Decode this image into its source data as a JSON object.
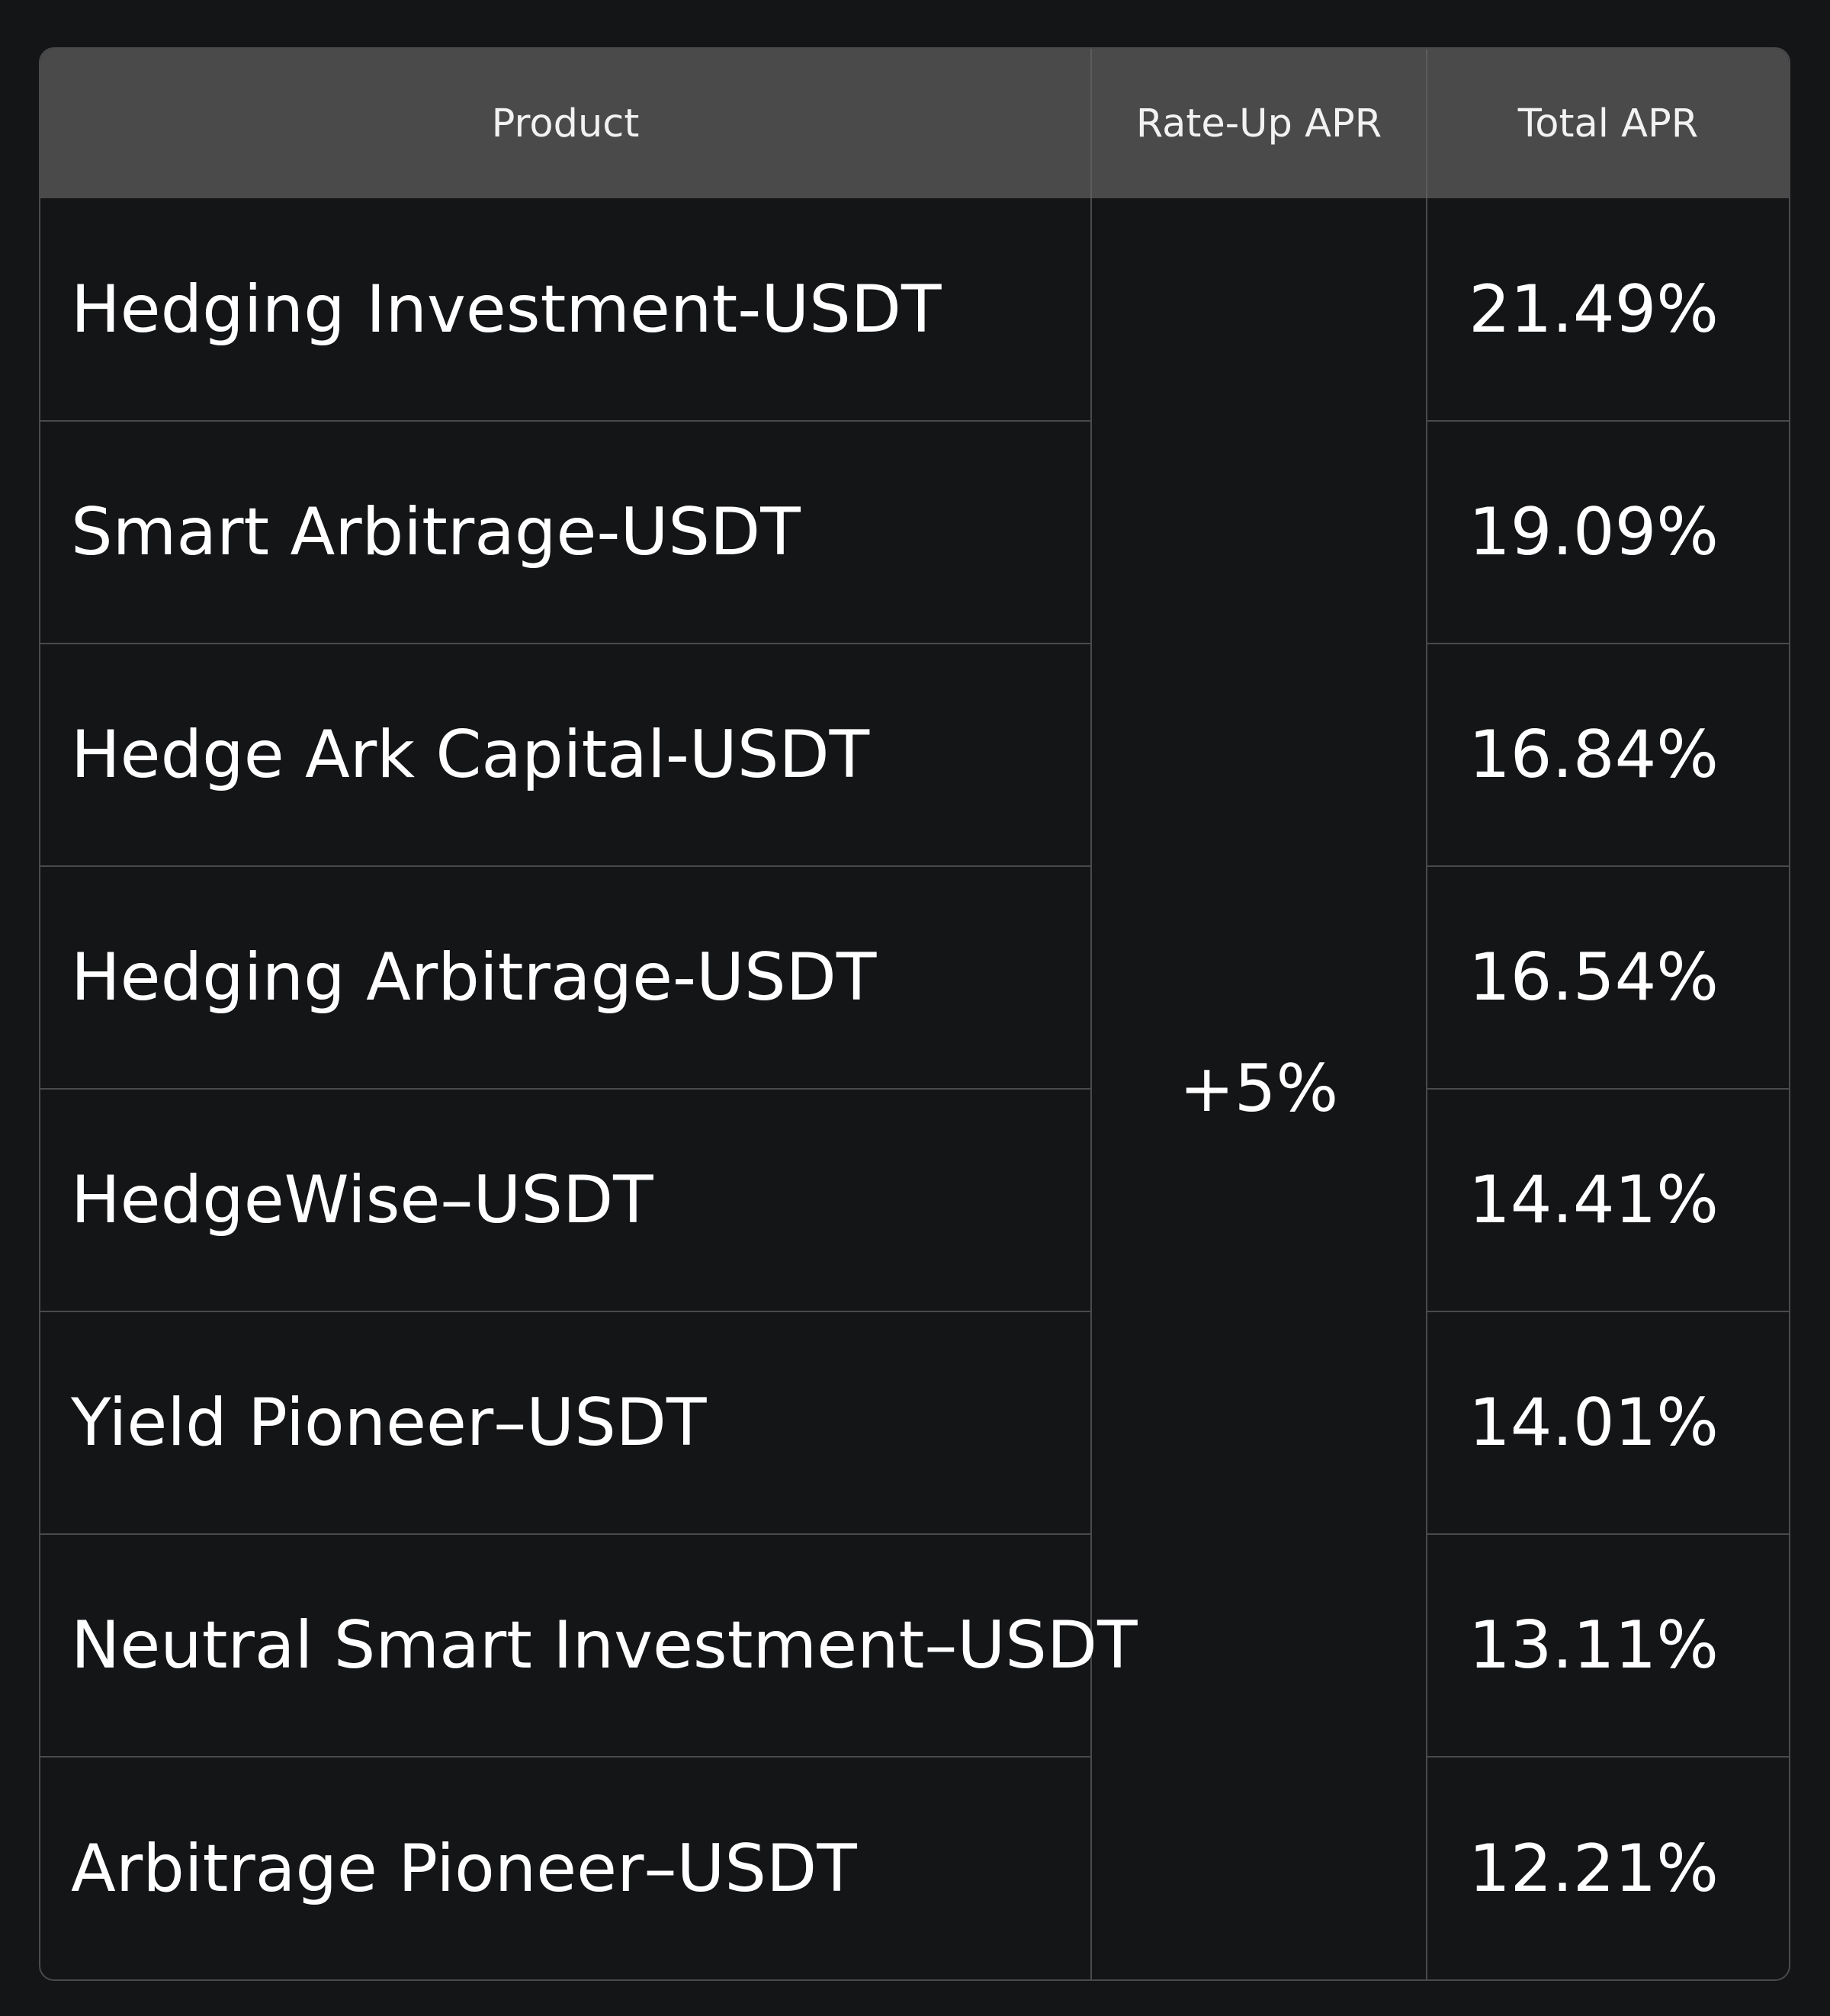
{
  "table": {
    "headers": {
      "product": "Product",
      "rate_up_apr": "Rate-Up APR",
      "total_apr": "Total APR"
    },
    "rate_up_apr_value": "+5%",
    "rows": [
      {
        "product": "Hedging Investment-USDT",
        "total_apr": "21.49%"
      },
      {
        "product": "Smart Arbitrage-USDT",
        "total_apr": "19.09%"
      },
      {
        "product": "Hedge Ark Capital-USDT",
        "total_apr": "16.84%"
      },
      {
        "product": "Hedging Arbitrage-USDT",
        "total_apr": "16.54%"
      },
      {
        "product": "HedgeWise–USDT",
        "total_apr": "14.41%"
      },
      {
        "product": "Yield Pioneer–USDT",
        "total_apr": "14.01%"
      },
      {
        "product": "Neutral Smart Investment–USDT",
        "total_apr": "13.11%"
      },
      {
        "product": "Arbitrage Pioneer–USDT",
        "total_apr": "12.21%"
      }
    ]
  }
}
